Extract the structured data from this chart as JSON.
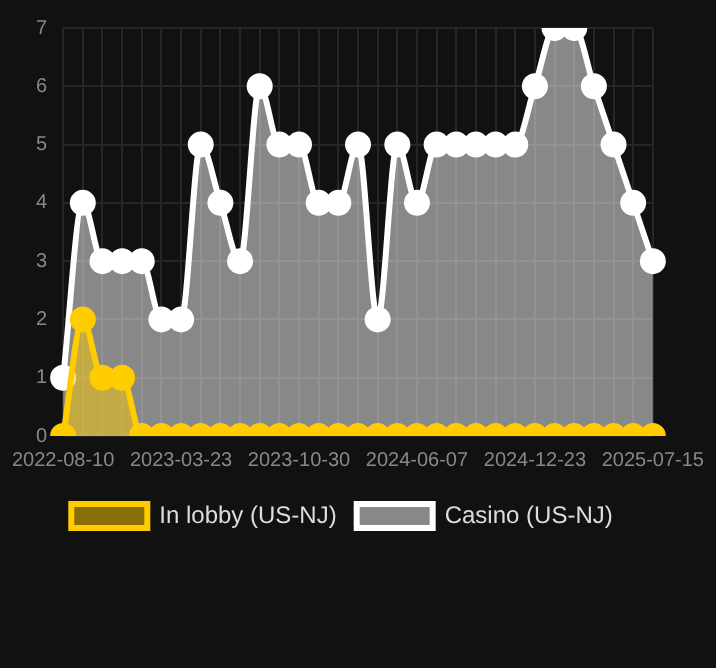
{
  "chart_data": {
    "type": "area",
    "categories": [
      "2022-08-10",
      null,
      null,
      null,
      null,
      null,
      "2023-03-23",
      null,
      null,
      null,
      null,
      null,
      "2023-10-30",
      null,
      null,
      null,
      null,
      null,
      "2024-06-07",
      null,
      null,
      null,
      null,
      null,
      "2024-12-23",
      null,
      null,
      null,
      null,
      null,
      "2025-07-15"
    ],
    "series": [
      {
        "name": "In lobby (US-NJ)",
        "color": "#ffcc00",
        "values": [
          0,
          2,
          1,
          1,
          0,
          0,
          0,
          0,
          0,
          0,
          0,
          0,
          0,
          0,
          0,
          0,
          0,
          0,
          0,
          0,
          0,
          0,
          0,
          0,
          0,
          0,
          0,
          0,
          0,
          0,
          0
        ]
      },
      {
        "name": "Casino (US-NJ)",
        "color": "#ffffff",
        "values": [
          1,
          4,
          3,
          3,
          3,
          2,
          2,
          5,
          4,
          3,
          6,
          5,
          5,
          4,
          4,
          5,
          2,
          5,
          4,
          5,
          5,
          5,
          5,
          5,
          6,
          7,
          7,
          6,
          5,
          4,
          3
        ]
      }
    ],
    "ylim": [
      0,
      7
    ],
    "yticks": [
      0,
      1,
      2,
      3,
      4,
      5,
      6,
      7
    ],
    "grid": true,
    "legend": "bottom",
    "marker": "circle"
  }
}
